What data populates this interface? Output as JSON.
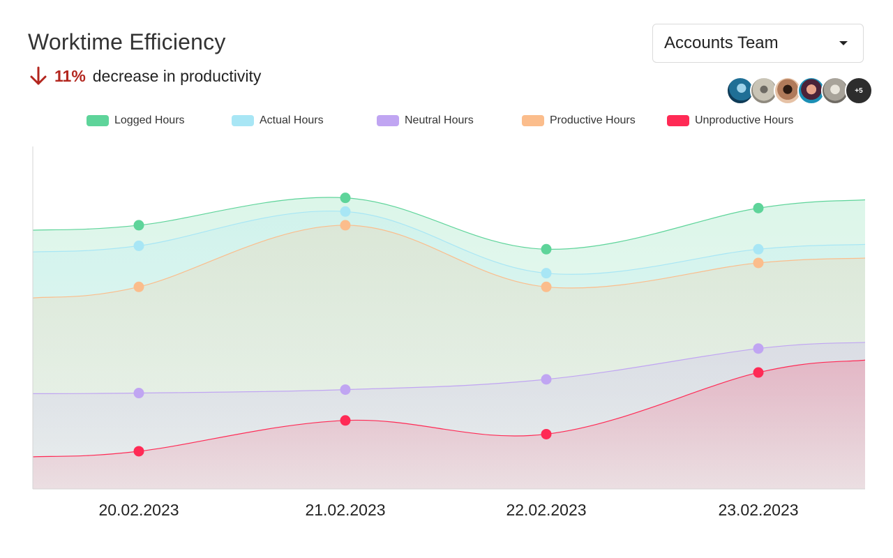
{
  "header": {
    "title": "Worktime Efficiency",
    "trend_percent": "11%",
    "trend_text": "decrease in productivity",
    "trend_direction": "down",
    "trend_color": "#b3261e"
  },
  "team_select": {
    "selected": "Accounts Team",
    "icon": "caret-down-icon"
  },
  "avatars": {
    "count_shown": 5,
    "more_label": "+5"
  },
  "chart_data": {
    "type": "area",
    "categories": [
      "20.02.2023",
      "21.02.2023",
      "22.02.2023",
      "23.02.2023"
    ],
    "series": [
      {
        "name": "Logged Hours",
        "color": "#5ed49a",
        "values": [
          7.7,
          8.5,
          7.0,
          8.2
        ]
      },
      {
        "name": "Actual Hours",
        "color": "#a8e6f5",
        "values": [
          7.1,
          8.1,
          6.3,
          7.0
        ]
      },
      {
        "name": "Productive Hours",
        "color": "#fbbd8c",
        "values": [
          5.9,
          7.7,
          5.9,
          6.6
        ]
      },
      {
        "name": "Neutral Hours",
        "color": "#c0a5f2",
        "values": [
          2.8,
          2.9,
          3.2,
          4.1
        ]
      },
      {
        "name": "Unproductive Hours",
        "color": "#ff2a55",
        "values": [
          1.1,
          2.0,
          1.6,
          3.4
        ]
      }
    ],
    "legend_order": [
      "Logged Hours",
      "Actual Hours",
      "Neutral Hours",
      "Productive Hours",
      "Unproductive Hours"
    ],
    "legend_position": "top",
    "ylim": [
      0,
      10
    ],
    "grid": false,
    "xlabel": "",
    "ylabel": ""
  }
}
